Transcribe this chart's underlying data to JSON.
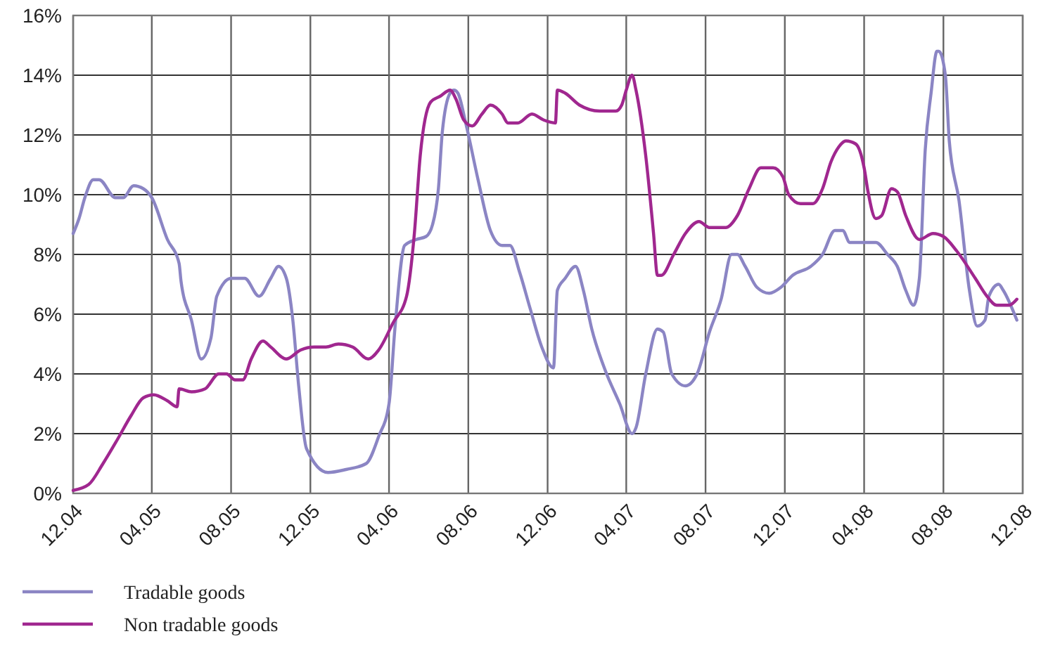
{
  "chart_data": {
    "type": "line",
    "xlim": [
      "2004-12-01",
      "2008-12-01"
    ],
    "xticks": [
      {
        "value": "2004-12-01",
        "label": "12.04"
      },
      {
        "value": "2005-04-01",
        "label": "04.05"
      },
      {
        "value": "2005-08-01",
        "label": "08.05"
      },
      {
        "value": "2005-12-01",
        "label": "12.05"
      },
      {
        "value": "2006-04-01",
        "label": "04.06"
      },
      {
        "value": "2006-08-01",
        "label": "08.06"
      },
      {
        "value": "2006-12-01",
        "label": "12.06"
      },
      {
        "value": "2007-04-01",
        "label": "04.07"
      },
      {
        "value": "2007-08-01",
        "label": "08.07"
      },
      {
        "value": "2007-12-01",
        "label": "12.07"
      },
      {
        "value": "2008-04-01",
        "label": "04.08"
      },
      {
        "value": "2008-08-01",
        "label": "08.08"
      },
      {
        "value": "2008-12-01",
        "label": "12.08"
      }
    ],
    "ylim": [
      0,
      16
    ],
    "yticks": [
      {
        "value": 0,
        "label": "0%"
      },
      {
        "value": 2,
        "label": "2%"
      },
      {
        "value": 4,
        "label": "4%"
      },
      {
        "value": 6,
        "label": "6%"
      },
      {
        "value": 8,
        "label": "8%"
      },
      {
        "value": 10,
        "label": "10%"
      },
      {
        "value": 12,
        "label": "12%"
      },
      {
        "value": 14,
        "label": "14%"
      },
      {
        "value": 16,
        "label": "16%"
      }
    ],
    "grid": true,
    "legend": "bottom left",
    "marker": "none",
    "line_style": "solid",
    "series": [
      {
        "name": "Tradable goods",
        "color": "#8b85c4",
        "x": [
          "2004-12-01",
          "2004-12-10",
          "2004-12-19",
          "2005-01-01",
          "2005-01-10",
          "2005-02-04",
          "2005-02-16",
          "2005-03-04",
          "2005-03-19",
          "2005-04-01",
          "2005-04-25",
          "2005-05-13",
          "2005-05-16",
          "2005-06-01",
          "2005-06-16",
          "2005-07-01",
          "2005-07-10",
          "2005-08-01",
          "2005-08-22",
          "2005-09-13",
          "2005-10-01",
          "2005-10-13",
          "2005-10-25",
          "2005-11-04",
          "2005-11-13",
          "2005-11-25",
          "2005-12-28",
          "2006-01-25",
          "2006-02-25",
          "2006-03-16",
          "2006-04-01",
          "2006-04-10",
          "2006-04-25",
          "2006-05-13",
          "2006-05-28",
          "2006-06-07",
          "2006-06-16",
          "2006-06-22",
          "2006-07-04",
          "2006-07-10",
          "2006-07-16",
          "2006-07-28",
          "2006-08-16",
          "2006-09-04",
          "2006-09-22",
          "2006-10-04",
          "2006-10-19",
          "2006-11-04",
          "2006-11-22",
          "2006-12-10",
          "2006-12-16",
          "2006-12-28",
          "2007-01-13",
          "2007-01-25",
          "2007-02-07",
          "2007-02-28",
          "2007-03-22",
          "2007-04-10",
          "2007-04-16",
          "2007-05-01",
          "2007-05-19",
          "2007-05-28",
          "2007-06-10",
          "2007-07-01",
          "2007-07-19",
          "2007-08-07",
          "2007-08-25",
          "2007-09-10",
          "2007-09-19",
          "2007-10-01",
          "2007-10-19",
          "2007-11-07",
          "2007-11-25",
          "2007-12-13",
          "2008-01-10",
          "2008-01-28",
          "2008-02-16",
          "2008-02-28",
          "2008-03-10",
          "2008-03-28",
          "2008-04-19",
          "2008-05-07",
          "2008-05-22",
          "2008-06-04",
          "2008-06-16",
          "2008-06-25",
          "2008-07-04",
          "2008-07-13",
          "2008-07-22",
          "2008-07-25",
          "2008-08-04",
          "2008-08-10",
          "2008-08-25",
          "2008-09-10",
          "2008-09-22",
          "2008-10-04",
          "2008-10-10",
          "2008-10-25",
          "2008-11-01",
          "2008-11-22"
        ],
        "values": [
          8.7,
          9.2,
          9.9,
          10.5,
          10.5,
          9.9,
          9.9,
          10.3,
          10.2,
          9.9,
          8.5,
          7.7,
          7.1,
          5.8,
          4.5,
          5.2,
          6.6,
          7.2,
          7.2,
          6.6,
          7.2,
          7.6,
          7.2,
          5.8,
          3.6,
          1.5,
          0.7,
          0.8,
          1.0,
          1.9,
          3.0,
          5.5,
          8.3,
          8.5,
          8.6,
          9.0,
          10.2,
          12.1,
          13.4,
          13.5,
          13.4,
          12.4,
          10.5,
          8.8,
          8.3,
          8.3,
          7.4,
          6.2,
          4.9,
          4.2,
          6.8,
          7.2,
          7.6,
          6.8,
          5.5,
          4.1,
          3.0,
          2.0,
          2.2,
          4.0,
          5.5,
          5.4,
          4.0,
          3.6,
          4.0,
          5.4,
          6.5,
          8.0,
          8.0,
          7.6,
          6.9,
          6.7,
          6.9,
          7.3,
          7.6,
          8.0,
          8.8,
          8.8,
          8.4,
          8.4,
          8.4,
          8.0,
          7.6,
          6.8,
          6.3,
          7.2,
          11.5,
          13.4,
          14.8,
          14.8,
          14.0,
          11.8,
          9.8,
          6.8,
          5.6,
          5.8,
          6.6,
          7.0,
          6.8,
          5.8
        ]
      },
      {
        "name": "Non tradable goods",
        "color": "#a0278f",
        "x": [
          "2004-12-01",
          "2004-12-25",
          "2005-01-16",
          "2005-02-07",
          "2005-02-28",
          "2005-03-19",
          "2005-04-04",
          "2005-04-25",
          "2005-05-10",
          "2005-05-13",
          "2005-06-01",
          "2005-06-22",
          "2005-07-13",
          "2005-07-25",
          "2005-08-07",
          "2005-08-19",
          "2005-09-01",
          "2005-09-19",
          "2005-10-01",
          "2005-10-25",
          "2005-11-16",
          "2005-12-07",
          "2005-12-25",
          "2006-01-13",
          "2006-02-04",
          "2006-02-28",
          "2006-03-16",
          "2006-04-07",
          "2006-04-28",
          "2006-05-10",
          "2006-05-19",
          "2006-06-04",
          "2006-06-19",
          "2006-07-04",
          "2006-07-13",
          "2006-07-25",
          "2006-08-07",
          "2006-08-22",
          "2006-09-04",
          "2006-09-22",
          "2006-10-01",
          "2006-10-16",
          "2006-11-07",
          "2006-11-25",
          "2006-12-13",
          "2006-12-16",
          "2006-12-28",
          "2007-01-19",
          "2007-02-19",
          "2007-03-16",
          "2007-03-25",
          "2007-04-01",
          "2007-04-10",
          "2007-04-16",
          "2007-05-01",
          "2007-05-13",
          "2007-05-19",
          "2007-05-25",
          "2007-06-13",
          "2007-07-01",
          "2007-07-22",
          "2007-08-07",
          "2007-09-01",
          "2007-09-19",
          "2007-10-07",
          "2007-10-25",
          "2007-11-13",
          "2007-11-28",
          "2007-12-07",
          "2007-12-25",
          "2008-01-13",
          "2008-01-28",
          "2008-02-10",
          "2008-02-22",
          "2008-03-04",
          "2008-03-19",
          "2008-04-01",
          "2008-04-07",
          "2008-04-19",
          "2008-04-28",
          "2008-05-13",
          "2008-05-22",
          "2008-06-04",
          "2008-06-25",
          "2008-07-16",
          "2008-08-01",
          "2008-08-22",
          "2008-09-19",
          "2008-10-07",
          "2008-10-22",
          "2008-11-10",
          "2008-11-22"
        ],
        "values": [
          0.1,
          0.3,
          1.0,
          1.8,
          2.6,
          3.2,
          3.3,
          3.1,
          2.9,
          3.5,
          3.4,
          3.5,
          4.0,
          4.0,
          3.8,
          3.8,
          4.5,
          5.1,
          4.9,
          4.5,
          4.8,
          4.9,
          4.9,
          5.0,
          4.9,
          4.5,
          4.8,
          5.7,
          6.6,
          8.7,
          11.3,
          13.1,
          13.3,
          13.5,
          13.2,
          12.5,
          12.3,
          12.7,
          13.0,
          12.7,
          12.4,
          12.4,
          12.7,
          12.5,
          12.4,
          13.5,
          13.4,
          13.0,
          12.8,
          12.8,
          13.0,
          13.5,
          14.0,
          13.5,
          11.3,
          8.7,
          7.3,
          7.3,
          8.0,
          8.7,
          9.1,
          8.9,
          8.9,
          9.3,
          10.2,
          10.9,
          10.9,
          10.6,
          10.0,
          9.7,
          9.7,
          10.2,
          11.1,
          11.6,
          11.8,
          11.7,
          10.9,
          10.1,
          9.2,
          9.3,
          10.2,
          10.1,
          9.3,
          8.5,
          8.7,
          8.6,
          8.1,
          7.2,
          6.6,
          6.3,
          6.3,
          6.5
        ]
      }
    ]
  }
}
